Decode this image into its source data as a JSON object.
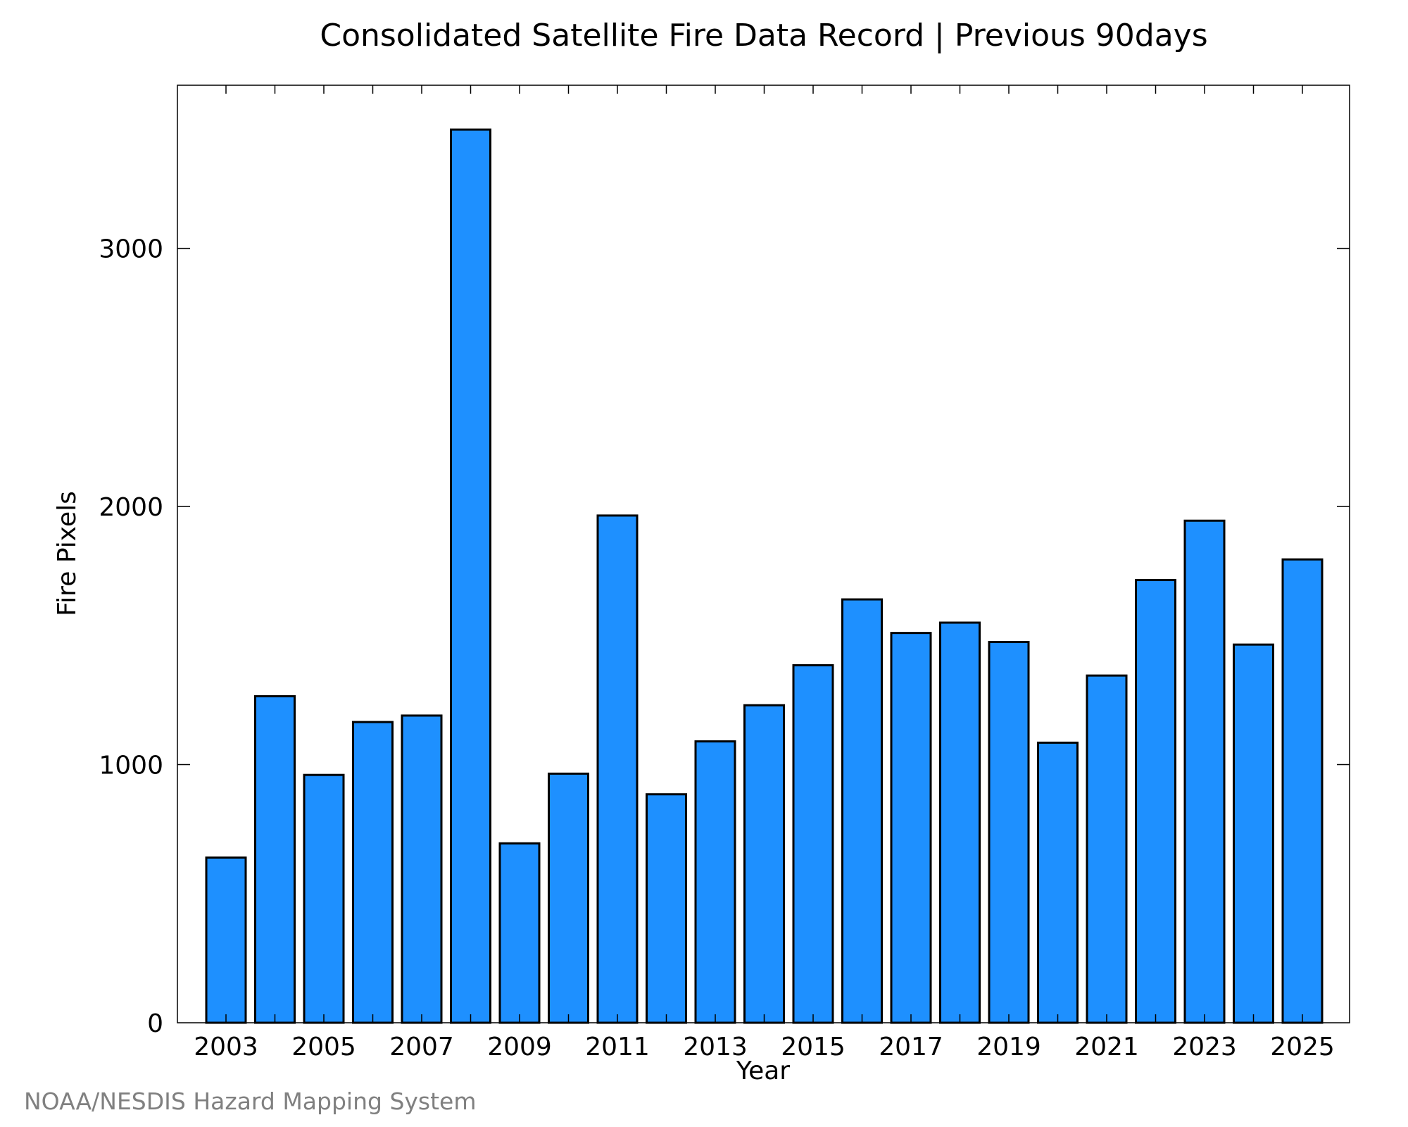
{
  "chart_data": {
    "type": "bar",
    "title": "Consolidated Satellite Fire Data Record | Previous 90days",
    "xlabel": "Year",
    "ylabel": "Fire Pixels",
    "credit": "NOAA/NESDIS Hazard Mapping System",
    "categories": [
      "2003",
      "2004",
      "2005",
      "2006",
      "2007",
      "2008",
      "2009",
      "2010",
      "2011",
      "2012",
      "2013",
      "2014",
      "2015",
      "2016",
      "2017",
      "2018",
      "2019",
      "2020",
      "2021",
      "2022",
      "2023",
      "2024",
      "2025"
    ],
    "values": [
      640,
      1265,
      960,
      1165,
      1190,
      3460,
      695,
      965,
      1965,
      885,
      1090,
      1230,
      1385,
      1640,
      1510,
      1550,
      1475,
      1085,
      1345,
      1715,
      1945,
      1465,
      1795
    ],
    "x_tick_labels": [
      "2003",
      "2005",
      "2007",
      "2009",
      "2011",
      "2013",
      "2015",
      "2017",
      "2019",
      "2021",
      "2023",
      "2025"
    ],
    "y_ticks": [
      0,
      1000,
      2000,
      3000
    ],
    "y_tick_labels": [
      "0",
      "1000",
      "2000",
      "3000"
    ],
    "ylim": [
      0,
      3632
    ],
    "grid": false,
    "colors": {
      "bar_fill": "#1e90ff",
      "bar_stroke": "#000000",
      "axis": "#000000",
      "credit": "#808080"
    }
  }
}
